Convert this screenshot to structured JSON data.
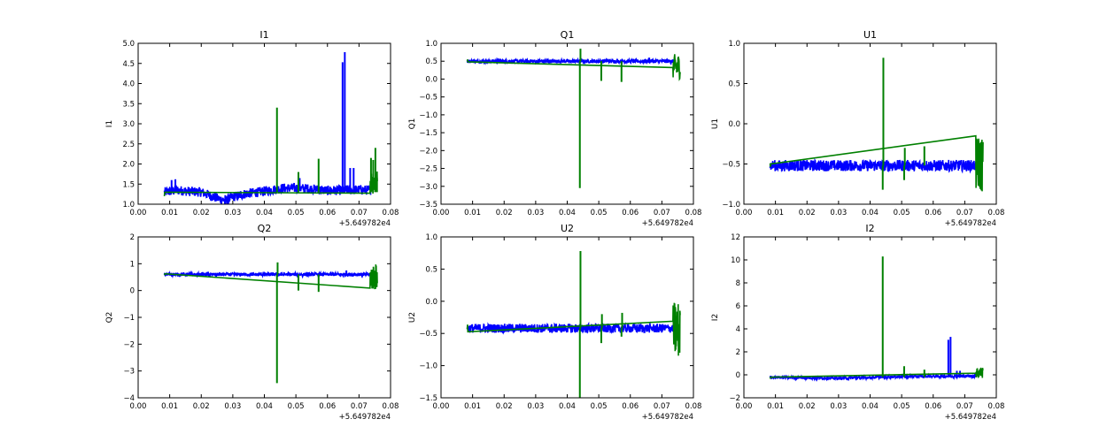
{
  "chart_data": [
    {
      "type": "line",
      "title": "I1",
      "xlabel": "",
      "ylabel": "I1",
      "x_offset_label": "+5.649782e4",
      "xlim": [
        0.0,
        0.08
      ],
      "ylim": [
        1.0,
        5.0
      ],
      "xticks": [
        "0.00",
        "0.01",
        "0.02",
        "0.03",
        "0.04",
        "0.05",
        "0.06",
        "0.07",
        "0.08"
      ],
      "yticks": [
        "1.0",
        "1.5",
        "2.0",
        "2.5",
        "3.0",
        "3.5",
        "4.0",
        "4.5",
        "5.0"
      ],
      "series": [
        {
          "color": "#0000ff",
          "base": [
            [
              0.0083,
              1.3
            ],
            [
              0.012,
              1.35
            ],
            [
              0.016,
              1.32
            ],
            [
              0.02,
              1.3
            ],
            [
              0.024,
              1.18
            ],
            [
              0.026,
              1.12
            ],
            [
              0.028,
              1.1
            ],
            [
              0.03,
              1.18
            ],
            [
              0.034,
              1.26
            ],
            [
              0.038,
              1.3
            ],
            [
              0.042,
              1.35
            ],
            [
              0.046,
              1.4
            ],
            [
              0.05,
              1.4
            ],
            [
              0.055,
              1.38
            ],
            [
              0.06,
              1.34
            ],
            [
              0.065,
              1.35
            ],
            [
              0.07,
              1.36
            ],
            [
              0.0737,
              1.35
            ]
          ],
          "noise": 0.12,
          "spikes": [
            [
              0.0106,
              1.6
            ],
            [
              0.0118,
              1.62
            ],
            [
              0.0275,
              0.95
            ],
            [
              0.0648,
              4.53
            ],
            [
              0.0655,
              4.78
            ],
            [
              0.0672,
              1.9
            ],
            [
              0.0683,
              1.9
            ],
            [
              0.0512,
              1.65
            ]
          ]
        },
        {
          "color": "#008000",
          "base": [
            [
              0.0083,
              1.3
            ],
            [
              0.0085,
              1.3
            ]
          ],
          "noise": 0.1,
          "spikes": [
            [
              0.044,
              3.4
            ],
            [
              0.0508,
              1.8
            ],
            [
              0.0572,
              2.13
            ],
            [
              0.0738,
              2.15
            ],
            [
              0.0745,
              2.1
            ],
            [
              0.0752,
              2.4
            ],
            [
              0.0757,
              1.65
            ]
          ],
          "tail": [
            0.0735,
            0.0758,
            1.55,
            0.3
          ]
        }
      ]
    },
    {
      "type": "line",
      "title": "Q1",
      "xlabel": "",
      "ylabel": "Q1",
      "x_offset_label": "+5.649782e4",
      "xlim": [
        0.0,
        0.08
      ],
      "ylim": [
        -3.5,
        1.0
      ],
      "xticks": [
        "0.00",
        "0.01",
        "0.02",
        "0.03",
        "0.04",
        "0.05",
        "0.06",
        "0.07",
        "0.08"
      ],
      "yticks": [
        "−3.5",
        "−3.0",
        "−2.5",
        "−2.0",
        "−1.5",
        "−1.0",
        "−0.5",
        "0.0",
        "0.5",
        "1.0"
      ],
      "series": [
        {
          "color": "#0000ff",
          "base": [
            [
              0.0083,
              0.5
            ],
            [
              0.0737,
              0.5
            ]
          ],
          "noise": 0.05,
          "spikes": [
            [
              0.066,
              0.6
            ]
          ]
        },
        {
          "color": "#008000",
          "base": [
            [
              0.0083,
              0.5
            ],
            [
              0.0085,
              0.5
            ]
          ],
          "noise": 0.05,
          "spikes": [
            [
              0.044,
              -3.05
            ],
            [
              0.0442,
              0.85
            ],
            [
              0.0508,
              -0.05
            ],
            [
              0.0572,
              -0.08
            ]
          ],
          "tail": [
            0.0735,
            0.0758,
            0.35,
            0.35
          ]
        }
      ]
    },
    {
      "type": "line",
      "title": "U1",
      "xlabel": "",
      "ylabel": "U1",
      "x_offset_label": "+5.649782e4",
      "xlim": [
        0.0,
        0.08
      ],
      "ylim": [
        -1.0,
        1.0
      ],
      "xticks": [
        "0.00",
        "0.01",
        "0.02",
        "0.03",
        "0.04",
        "0.05",
        "0.06",
        "0.07",
        "0.08"
      ],
      "yticks": [
        "−1.0",
        "−0.5",
        "0.0",
        "0.5",
        "1.0"
      ],
      "series": [
        {
          "color": "#0000ff",
          "base": [
            [
              0.0083,
              -0.52
            ],
            [
              0.0737,
              -0.52
            ]
          ],
          "noise": 0.07,
          "spikes": []
        },
        {
          "color": "#008000",
          "base": [
            [
              0.0083,
              -0.52
            ],
            [
              0.0085,
              -0.52
            ]
          ],
          "noise": 0.06,
          "spikes": [
            [
              0.044,
              -0.82
            ],
            [
              0.0442,
              0.82
            ],
            [
              0.0508,
              -0.7
            ],
            [
              0.051,
              -0.3
            ],
            [
              0.0572,
              -0.28
            ]
          ],
          "tail": [
            0.0735,
            0.0758,
            -0.5,
            0.35
          ]
        }
      ]
    },
    {
      "type": "line",
      "title": "Q2",
      "xlabel": "",
      "ylabel": "Q2",
      "x_offset_label": "+5.649782e4",
      "xlim": [
        0.0,
        0.08
      ],
      "ylim": [
        -4.0,
        2.0
      ],
      "xticks": [
        "0.00",
        "0.01",
        "0.02",
        "0.03",
        "0.04",
        "0.05",
        "0.06",
        "0.07",
        "0.08"
      ],
      "yticks": [
        "−4",
        "−3",
        "−2",
        "−1",
        "0",
        "1",
        "2"
      ],
      "series": [
        {
          "color": "#0000ff",
          "base": [
            [
              0.0083,
              0.6
            ],
            [
              0.0737,
              0.6
            ]
          ],
          "noise": 0.06,
          "spikes": [
            [
              0.066,
              0.75
            ]
          ]
        },
        {
          "color": "#008000",
          "base": [
            [
              0.0083,
              0.6
            ],
            [
              0.0085,
              0.6
            ]
          ],
          "noise": 0.05,
          "spikes": [
            [
              0.044,
              -3.45
            ],
            [
              0.0442,
              1.05
            ],
            [
              0.0508,
              0.0
            ],
            [
              0.0572,
              -0.05
            ]
          ],
          "tail": [
            0.0735,
            0.0758,
            0.5,
            0.5
          ]
        }
      ]
    },
    {
      "type": "line",
      "title": "U2",
      "xlabel": "",
      "ylabel": "U2",
      "x_offset_label": "+5.649782e4",
      "xlim": [
        0.0,
        0.08
      ],
      "ylim": [
        -1.5,
        1.0
      ],
      "xticks": [
        "0.00",
        "0.01",
        "0.02",
        "0.03",
        "0.04",
        "0.05",
        "0.06",
        "0.07",
        "0.08"
      ],
      "yticks": [
        "−1.5",
        "−1.0",
        "−0.5",
        "0.0",
        "0.5",
        "1.0"
      ],
      "series": [
        {
          "color": "#0000ff",
          "base": [
            [
              0.0083,
              -0.42
            ],
            [
              0.0737,
              -0.42
            ]
          ],
          "noise": 0.07,
          "spikes": []
        },
        {
          "color": "#008000",
          "base": [
            [
              0.0083,
              -0.42
            ],
            [
              0.0085,
              -0.42
            ]
          ],
          "noise": 0.06,
          "spikes": [
            [
              0.044,
              -1.5
            ],
            [
              0.0442,
              0.78
            ],
            [
              0.0508,
              -0.65
            ],
            [
              0.051,
              -0.2
            ],
            [
              0.0572,
              -0.55
            ],
            [
              0.0574,
              -0.18
            ]
          ],
          "tail": [
            0.0735,
            0.0758,
            -0.45,
            0.45
          ]
        }
      ]
    },
    {
      "type": "line",
      "title": "I2",
      "xlabel": "",
      "ylabel": "I2",
      "x_offset_label": "+5.649782e4",
      "xlim": [
        0.0,
        0.08
      ],
      "ylim": [
        -2.0,
        12.0
      ],
      "xticks": [
        "0.00",
        "0.01",
        "0.02",
        "0.03",
        "0.04",
        "0.05",
        "0.06",
        "0.07",
        "0.08"
      ],
      "yticks": [
        "−2",
        "0",
        "2",
        "4",
        "6",
        "8",
        "10",
        "12"
      ],
      "series": [
        {
          "color": "#0000ff",
          "base": [
            [
              0.0083,
              -0.2
            ],
            [
              0.03,
              -0.3
            ],
            [
              0.05,
              -0.15
            ],
            [
              0.0737,
              -0.1
            ]
          ],
          "noise": 0.12,
          "spikes": [
            [
              0.0648,
              3.05
            ],
            [
              0.0655,
              3.3
            ],
            [
              0.0675,
              0.35
            ],
            [
              0.0685,
              0.35
            ]
          ]
        },
        {
          "color": "#008000",
          "base": [
            [
              0.0083,
              -0.2
            ],
            [
              0.0085,
              -0.2
            ]
          ],
          "noise": 0.1,
          "spikes": [
            [
              0.044,
              10.3
            ],
            [
              0.0508,
              0.75
            ],
            [
              0.0572,
              0.45
            ]
          ],
          "tail": [
            0.0735,
            0.0758,
            0.2,
            0.5
          ]
        }
      ]
    }
  ]
}
